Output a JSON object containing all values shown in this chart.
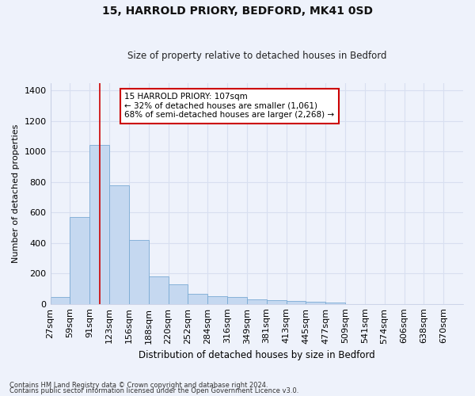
{
  "title": "15, HARROLD PRIORY, BEDFORD, MK41 0SD",
  "subtitle": "Size of property relative to detached houses in Bedford",
  "xlabel": "Distribution of detached houses by size in Bedford",
  "ylabel": "Number of detached properties",
  "bar_values": [
    45,
    570,
    1040,
    780,
    420,
    180,
    130,
    65,
    50,
    45,
    30,
    25,
    20,
    15,
    10,
    0,
    0,
    0,
    0,
    0,
    0
  ],
  "bin_labels": [
    "27sqm",
    "59sqm",
    "91sqm",
    "123sqm",
    "156sqm",
    "188sqm",
    "220sqm",
    "252sqm",
    "284sqm",
    "316sqm",
    "349sqm",
    "381sqm",
    "413sqm",
    "445sqm",
    "477sqm",
    "509sqm",
    "541sqm",
    "574sqm",
    "606sqm",
    "638sqm",
    "670sqm"
  ],
  "bar_color": "#c5d8f0",
  "bar_edge_color": "#7aaad4",
  "bg_color": "#eef2fb",
  "grid_color": "#d8dff0",
  "annotation_text": "15 HARROLD PRIORY: 107sqm\n← 32% of detached houses are smaller (1,061)\n68% of semi-detached houses are larger (2,268) →",
  "annotation_box_color": "#ffffff",
  "annotation_box_edge": "#cc0000",
  "ylim": [
    0,
    1450
  ],
  "footnote1": "Contains HM Land Registry data © Crown copyright and database right 2024.",
  "footnote2": "Contains public sector information licensed under the Open Government Licence v3.0."
}
